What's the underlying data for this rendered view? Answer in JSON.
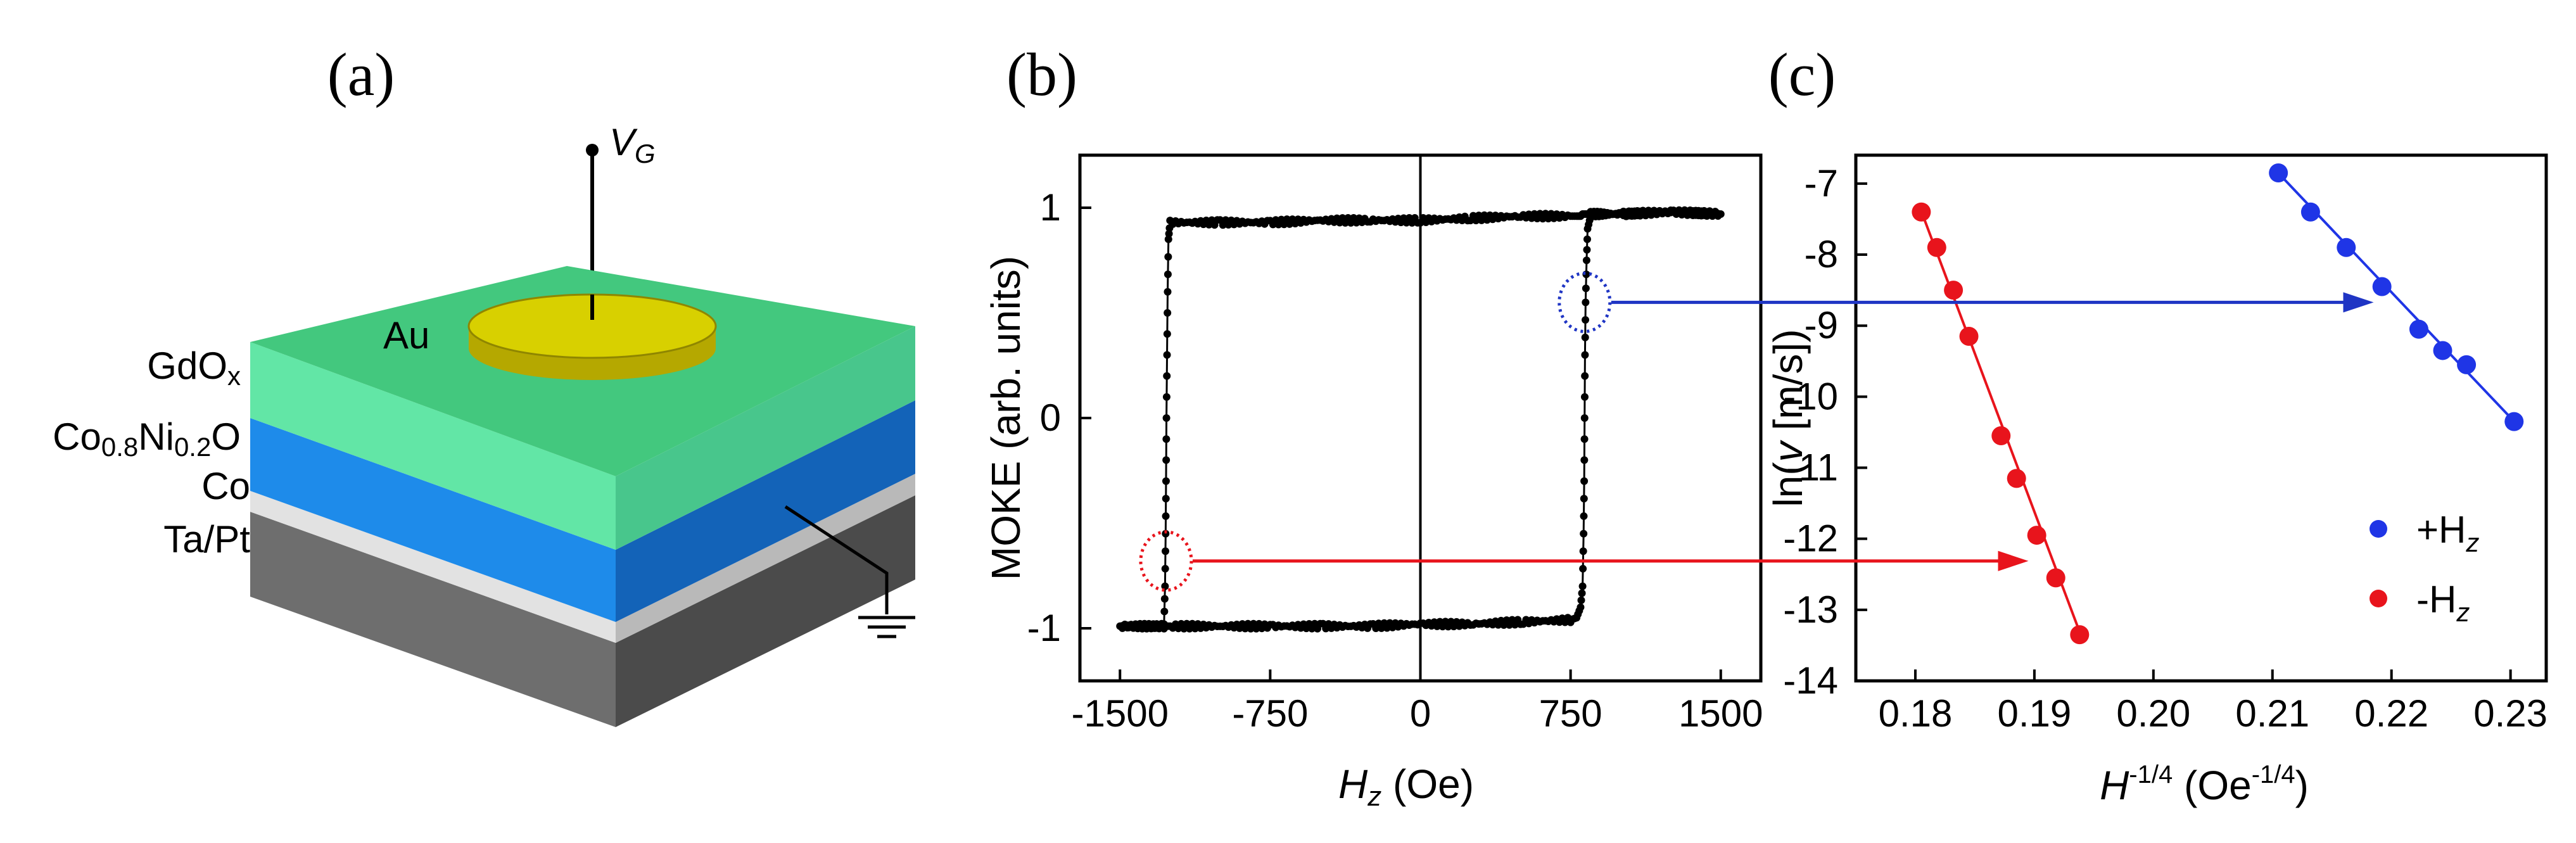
{
  "panels": {
    "a": {
      "label": "(a)",
      "gate_label": "V",
      "gate_sub": "G",
      "electrode_label": "Au",
      "layers": [
        {
          "main": "GdO",
          "sub": "x",
          "tail": ""
        },
        {
          "main": "Co",
          "sub": "0.8",
          "tail": "Ni",
          "sub2": "0.2",
          "tail2": "O"
        },
        {
          "main": "Co",
          "sub": "",
          "tail": ""
        },
        {
          "main": "Ta/Pt",
          "sub": "",
          "tail": ""
        }
      ],
      "colors": {
        "gdox": "#5FE3A1",
        "coni": "#1E82E0",
        "co": "#D6D6D6",
        "tapt": "#6E6E6E",
        "au": "#C9C400"
      }
    },
    "b": {
      "label": "(b)"
    },
    "c": {
      "label": "(c)"
    }
  },
  "chart_data": [
    {
      "type": "line",
      "panel": "b",
      "title": "",
      "xlabel_italic": "H",
      "xlabel_sub": "z",
      "xlabel_rest": " (Oe)",
      "ylabel": "MOKE (arb. units)",
      "xlim": [
        -1700,
        1700
      ],
      "ylim": [
        -1.25,
        1.25
      ],
      "xticks": [
        -1500,
        -750,
        0,
        750,
        1500
      ],
      "xtick_labels": [
        "-1500",
        "-750",
        "0",
        "750",
        "1500"
      ],
      "yticks": [
        -1,
        0,
        1
      ],
      "ytick_labels": [
        "-1",
        "0",
        "1"
      ],
      "coercive_field_negative": -1270,
      "coercive_field_positive": 820,
      "series": [
        {
          "name": "loop",
          "color": "#000000",
          "x": [
            -1500,
            -1300,
            -1280,
            -1275,
            -1272,
            -1270,
            -1268,
            -1265,
            -1262,
            -1258,
            -1250,
            -1000,
            -750,
            -500,
            -250,
            0,
            250,
            500,
            750,
            780,
            800,
            810,
            815,
            818,
            820,
            822,
            825,
            830,
            835,
            850,
            1000,
            1250,
            1500
          ],
          "y": [
            -0.99,
            -0.99,
            -0.98,
            -0.8,
            -0.55,
            -0.3,
            0.0,
            0.3,
            0.6,
            0.85,
            0.93,
            0.93,
            0.93,
            0.94,
            0.94,
            0.94,
            0.95,
            0.96,
            0.96,
            0.96,
            0.96,
            0.97,
            0.97,
            0.97,
            0.97,
            0.97,
            0.97,
            0.97,
            0.97,
            0.97,
            0.97,
            0.98,
            0.97
          ]
        },
        {
          "name": "return",
          "color": "#000000",
          "x": [
            1500,
            1250,
            1000,
            900,
            850,
            835,
            830,
            825,
            822,
            820,
            818,
            815,
            810,
            800,
            780,
            750,
            500,
            250,
            0,
            -250,
            -500,
            -750,
            -1000,
            -1250,
            -1280,
            -1500
          ],
          "y": [
            0.97,
            0.98,
            0.97,
            0.97,
            0.96,
            0.9,
            0.75,
            0.55,
            0.3,
            0.0,
            -0.3,
            -0.55,
            -0.8,
            -0.9,
            -0.95,
            -0.96,
            -0.97,
            -0.98,
            -0.98,
            -0.99,
            -0.99,
            -0.99,
            -0.99,
            -0.99,
            -0.99,
            -0.99
          ]
        }
      ],
      "markers": [
        {
          "name": "positive-switch",
          "x": 820,
          "y": 0.55,
          "color": "#1F35C4"
        },
        {
          "name": "negative-switch",
          "x": -1270,
          "y": -0.68,
          "color": "#E8141C"
        }
      ]
    },
    {
      "type": "scatter",
      "panel": "c",
      "title": "",
      "xlabel_italic": "H",
      "xlabel_sup": "-1/4",
      "xlabel_rest": " (Oe",
      "xlabel_sup2": "-1/4",
      "xlabel_end": ")",
      "ylabel_pre": "ln(",
      "ylabel_italic": "v",
      "ylabel_post": " [m/s])",
      "xlim": [
        0.175,
        0.233
      ],
      "ylim": [
        -14,
        -6.6
      ],
      "xticks": [
        0.18,
        0.19,
        0.2,
        0.21,
        0.22,
        0.23
      ],
      "xtick_labels": [
        "0.18",
        "0.19",
        "0.20",
        "0.21",
        "0.22",
        "0.23"
      ],
      "yticks": [
        -14,
        -13,
        -12,
        -11,
        -10,
        -9,
        -8,
        -7
      ],
      "ytick_labels": [
        "-14",
        "-13",
        "-12",
        "-11",
        "-10",
        "-9",
        "-8",
        "-7"
      ],
      "series": [
        {
          "name": "+H",
          "name_sub": "z",
          "color": "#1F35E6",
          "x": [
            0.2105,
            0.2132,
            0.2162,
            0.2192,
            0.2223,
            0.2243,
            0.2263,
            0.2303
          ],
          "y": [
            -6.85,
            -7.4,
            -7.9,
            -8.45,
            -9.05,
            -9.35,
            -9.55,
            -10.35
          ],
          "fit": {
            "x": [
              0.2102,
              0.2306
            ],
            "y": [
              -6.8,
              -10.4
            ]
          }
        },
        {
          "name": "-H",
          "name_sub": "z",
          "color": "#E8141C",
          "x": [
            0.1805,
            0.1818,
            0.1832,
            0.1845,
            0.1872,
            0.1885,
            0.1902,
            0.1918,
            0.1938
          ],
          "y": [
            -7.4,
            -7.9,
            -8.5,
            -9.15,
            -10.55,
            -11.15,
            -11.95,
            -12.55,
            -13.35
          ],
          "fit": {
            "x": [
              0.1803,
              0.194
            ],
            "y": [
              -7.3,
              -13.4
            ]
          }
        }
      ]
    }
  ]
}
